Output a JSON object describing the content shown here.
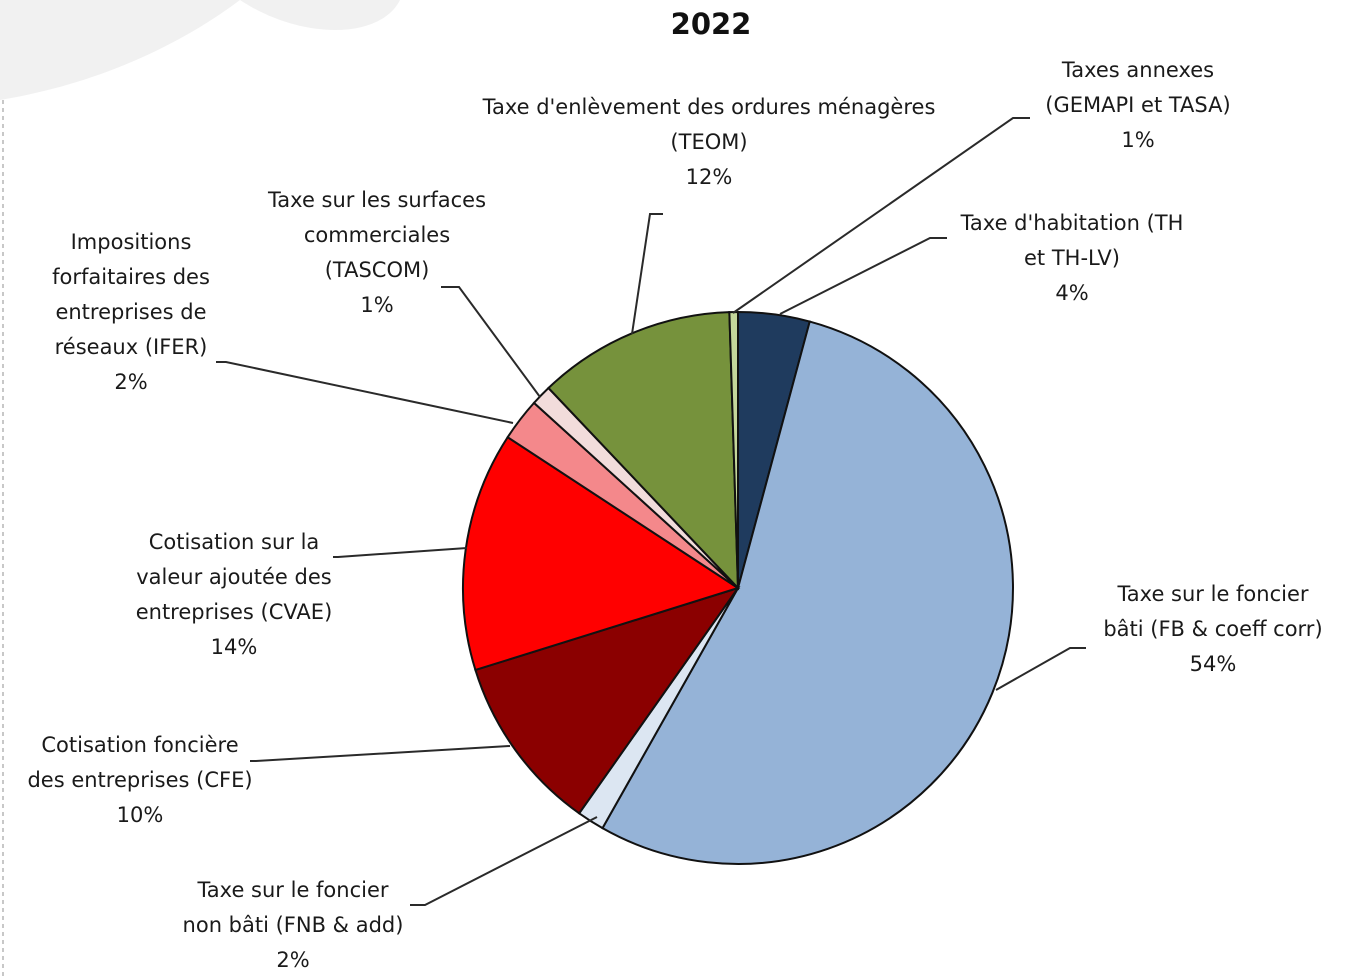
{
  "chart_data": {
    "type": "pie",
    "title": "2022",
    "slices": [
      {
        "label_lines": [
          "Taxe d'habitation (TH",
          "et TH-LV)"
        ],
        "percent_text": "4%",
        "value": 4.2,
        "color": "#1f3b5e"
      },
      {
        "label_lines": [
          "Taxe sur le foncier",
          "bâti (FB & coeff corr)"
        ],
        "percent_text": "54%",
        "value": 54.0,
        "color": "#95b3d7"
      },
      {
        "label_lines": [
          "Taxe sur le foncier",
          "non bâti (FNB & add)"
        ],
        "percent_text": "2%",
        "value": 1.6,
        "color": "#dce6f2"
      },
      {
        "label_lines": [
          "Cotisation foncière",
          "des entreprises (CFE)"
        ],
        "percent_text": "10%",
        "value": 10.4,
        "color": "#8b0000"
      },
      {
        "label_lines": [
          "Cotisation sur la",
          "valeur ajoutée des",
          "entreprises (CVAE)"
        ],
        "percent_text": "14%",
        "value": 14.0,
        "color": "#ff0000"
      },
      {
        "label_lines": [
          "Impositions",
          "forfaitaires des",
          "entreprises de",
          "réseaux (IFER)"
        ],
        "percent_text": "2%",
        "value": 2.5,
        "color": "#f4888b"
      },
      {
        "label_lines": [
          "Taxe sur les surfaces",
          "commerciales",
          "(TASCOM)"
        ],
        "percent_text": "1%",
        "value": 1.2,
        "color": "#f2dcdb"
      },
      {
        "label_lines": [
          "Taxe d'enlèvement des ordures ménagères",
          "(TEOM)"
        ],
        "percent_text": "12%",
        "value": 11.6,
        "color": "#76923c"
      },
      {
        "label_lines": [
          "Taxes annexes",
          "(GEMAPI et TASA)"
        ],
        "percent_text": "1%",
        "value": 0.5,
        "color": "#c4d79b"
      }
    ]
  }
}
